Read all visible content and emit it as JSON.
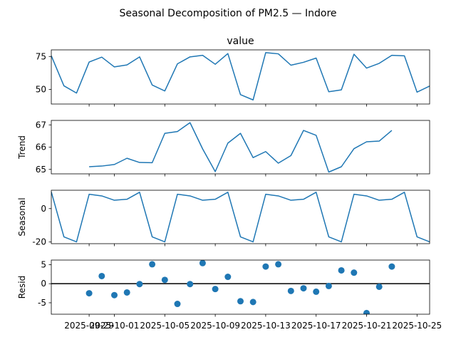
{
  "suptitle": "Seasonal Decomposition of PM2.5 — Indore",
  "colors": {
    "line": "#1f77b4",
    "marker": "#1f77b4",
    "zero_line": "#000000"
  },
  "chart_data": [
    {
      "panel": "observed",
      "type": "line",
      "title": "value",
      "ylabel": "",
      "ylim": [
        39,
        80
      ],
      "yticks": [
        50,
        75
      ],
      "x": [
        "2025-09-26",
        "2025-09-27",
        "2025-09-28",
        "2025-09-29",
        "2025-09-30",
        "2025-10-01",
        "2025-10-02",
        "2025-10-03",
        "2025-10-04",
        "2025-10-05",
        "2025-10-06",
        "2025-10-07",
        "2025-10-08",
        "2025-10-09",
        "2025-10-10",
        "2025-10-11",
        "2025-10-12",
        "2025-10-13",
        "2025-10-14",
        "2025-10-15",
        "2025-10-16",
        "2025-10-17",
        "2025-10-18",
        "2025-10-19",
        "2025-10-20",
        "2025-10-21",
        "2025-10-22",
        "2025-10-23",
        "2025-10-24",
        "2025-10-25",
        "2025-10-26"
      ],
      "values": [
        75.5,
        52.8,
        47.3,
        70.8,
        74.5,
        67.1,
        68.6,
        74.7,
        53.4,
        48.9,
        69.4,
        74.7,
        75.9,
        69.1,
        77.2,
        46.1,
        42.1,
        77.9,
        77.0,
        68.4,
        70.6,
        73.8,
        48.3,
        49.7,
        76.7,
        66.2,
        69.8,
        75.9,
        75.5,
        48.0,
        52.6
      ]
    },
    {
      "panel": "trend",
      "type": "line",
      "title": "",
      "ylabel": "Trend",
      "ylim": [
        64.8,
        67.2
      ],
      "yticks": [
        65,
        66,
        67
      ],
      "x": [
        "2025-09-29",
        "2025-09-30",
        "2025-10-01",
        "2025-10-02",
        "2025-10-03",
        "2025-10-04",
        "2025-10-05",
        "2025-10-06",
        "2025-10-07",
        "2025-10-08",
        "2025-10-09",
        "2025-10-10",
        "2025-10-11",
        "2025-10-12",
        "2025-10-13",
        "2025-10-14",
        "2025-10-15",
        "2025-10-16",
        "2025-10-17",
        "2025-10-18",
        "2025-10-19",
        "2025-10-20",
        "2025-10-21",
        "2025-10-22",
        "2025-10-23"
      ],
      "values": [
        65.12,
        65.15,
        65.22,
        65.5,
        65.31,
        65.3,
        66.62,
        66.7,
        67.1,
        65.92,
        64.9,
        66.18,
        66.62,
        65.53,
        65.8,
        65.28,
        65.62,
        66.75,
        66.53,
        64.88,
        65.12,
        65.93,
        66.24,
        66.27,
        66.75
      ]
    },
    {
      "panel": "seasonal",
      "type": "line",
      "title": "",
      "ylabel": "Seasonal",
      "ylim": [
        -21,
        11
      ],
      "yticks": [
        -20,
        0
      ],
      "x": [
        "2025-09-26",
        "2025-09-27",
        "2025-09-28",
        "2025-09-29",
        "2025-09-30",
        "2025-10-01",
        "2025-10-02",
        "2025-10-03",
        "2025-10-04",
        "2025-10-05",
        "2025-10-06",
        "2025-10-07",
        "2025-10-08",
        "2025-10-09",
        "2025-10-10",
        "2025-10-11",
        "2025-10-12",
        "2025-10-13",
        "2025-10-14",
        "2025-10-15",
        "2025-10-16",
        "2025-10-17",
        "2025-10-18",
        "2025-10-19",
        "2025-10-20",
        "2025-10-21",
        "2025-10-22",
        "2025-10-23",
        "2025-10-24",
        "2025-10-25",
        "2025-10-26"
      ],
      "values": [
        10.0,
        -16.9,
        -19.9,
        8.6,
        7.6,
        5.0,
        5.6,
        9.8,
        -16.9,
        -19.9,
        8.6,
        7.6,
        5.0,
        5.6,
        9.8,
        -16.9,
        -19.9,
        8.6,
        7.6,
        5.0,
        5.6,
        9.8,
        -16.9,
        -19.9,
        8.6,
        7.6,
        5.0,
        5.6,
        9.8,
        -16.9,
        -19.9
      ]
    },
    {
      "panel": "resid",
      "type": "scatter",
      "title": "",
      "ylabel": "Resid",
      "ylim": [
        -8,
        6.2
      ],
      "yticks": [
        -5,
        0,
        5
      ],
      "zero_line": 0,
      "x": [
        "2025-09-29",
        "2025-09-30",
        "2025-10-01",
        "2025-10-02",
        "2025-10-03",
        "2025-10-04",
        "2025-10-05",
        "2025-10-06",
        "2025-10-07",
        "2025-10-08",
        "2025-10-09",
        "2025-10-10",
        "2025-10-11",
        "2025-10-12",
        "2025-10-13",
        "2025-10-14",
        "2025-10-15",
        "2025-10-16",
        "2025-10-17",
        "2025-10-18",
        "2025-10-19",
        "2025-10-20",
        "2025-10-21",
        "2025-10-22",
        "2025-10-23"
      ],
      "values": [
        -2.5,
        2.0,
        -3.0,
        -2.3,
        -0.1,
        5.1,
        1.0,
        -5.3,
        -0.1,
        5.4,
        -1.4,
        1.8,
        -4.6,
        -4.8,
        4.5,
        5.1,
        -1.9,
        -1.2,
        -2.1,
        -0.6,
        3.5,
        2.9,
        -7.7,
        -0.8,
        4.5
      ]
    }
  ],
  "x_axis": {
    "range": [
      "2025-09-26",
      "2025-10-26"
    ],
    "ticks": [
      "2025-09-29",
      "2025-10-01",
      "2025-10-05",
      "2025-10-09",
      "2025-10-13",
      "2025-10-17",
      "2025-10-21",
      "2025-10-25"
    ]
  }
}
